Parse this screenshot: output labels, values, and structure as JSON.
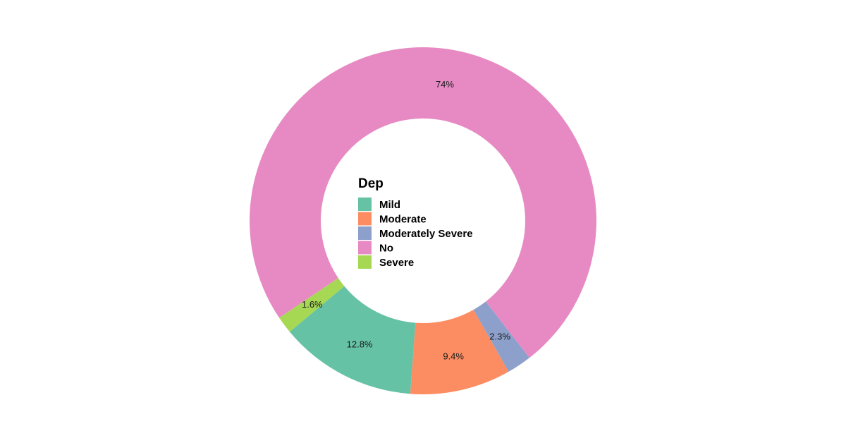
{
  "chart_data": {
    "type": "pie",
    "variant": "donut",
    "legend_title": "Dep",
    "legend_position": "center",
    "categories": [
      "Mild",
      "Moderate",
      "Moderately Severe",
      "No",
      "Severe"
    ],
    "values": [
      12.8,
      9.4,
      2.3,
      74.0,
      1.6
    ],
    "labels": [
      "12.8%",
      "9.4%",
      "2.3%",
      "74%",
      "1.6%"
    ],
    "colors": [
      "#66C2A5",
      "#FC8D62",
      "#8DA0CB",
      "#E78AC3",
      "#A6D854"
    ]
  }
}
